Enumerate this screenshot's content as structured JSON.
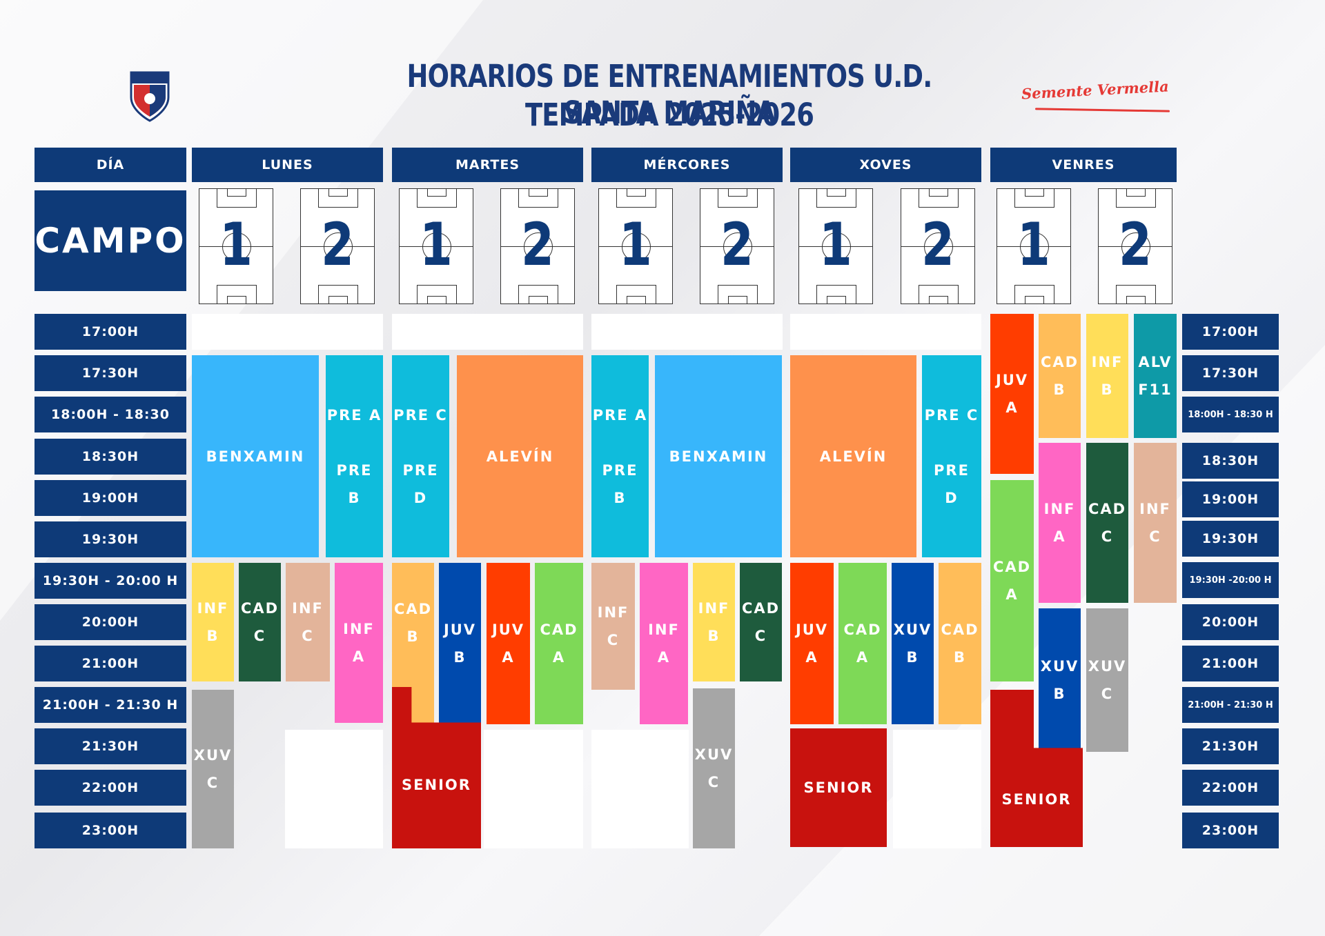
{
  "title": {
    "line1": "HORARIOS DE ENTRENAMIENTOS U.D. SANTA MARIÑA",
    "line2": "TEMPADA 2025-2026"
  },
  "logo": {
    "icon": "club-crest-icon",
    "colors": [
      "#d32f2f",
      "#1a3a7a"
    ]
  },
  "brand": "Semente Vermella",
  "header": {
    "day_label": "DÍA",
    "campo_label": "CAMPO",
    "days": [
      "LUNES",
      "MARTES",
      "MÉRCORES",
      "XOVES",
      "VENRES"
    ],
    "field_numbers": [
      "1",
      "2"
    ]
  },
  "times_left": [
    "17:00H",
    "17:30H",
    "18:00H - 18:30",
    "18:30H",
    "19:00H",
    "19:30H",
    "19:30H - 20:00 H",
    "20:00H",
    "21:00H",
    "21:00H - 21:30 H",
    "21:30H",
    "22:00H",
    "23:00H"
  ],
  "times_right": [
    "17:00H",
    "17:30H",
    "18:00H - 18:30 H",
    "18:30H",
    "19:00H",
    "19:30H",
    "19:30H -20:00 H",
    "20:00H",
    "21:00H",
    "21:00H - 21:30 H",
    "21:30H",
    "22:00H",
    "23:00H"
  ],
  "colors": {
    "navy": "#0e3a78",
    "benxamin": "#38b6fb",
    "prebenxamin": "#0fbcdc",
    "alevin": "#fe914c",
    "infantil_b": "#ffde59",
    "cadete_c": "#1e5b3d",
    "infantil_c": "#e3b49a",
    "infantil_a": "#ff66c4",
    "cadete_b": "#ffbd59",
    "xuvenil_c": "#a6a6a6",
    "xuvenil_b": "#004aad",
    "juvenil_a": "#ff3d00",
    "cadete_a": "#7ed957",
    "senior": "#c8120e",
    "alevin_f11": "#0e9aa7"
  },
  "blocks": {
    "lunes": [
      "BENXAMIN",
      "PRE A\n\nPRE\nB",
      "INF\nB",
      "CAD\nC",
      "INF\nC",
      "INF\nA",
      "XUV\nC"
    ],
    "martes": [
      "PRE C\n\nPRE\nD",
      "ALEVÍN",
      "CAD\nB",
      "JUV\nB",
      "JUV\nA",
      "CAD\nA",
      "SENIOR"
    ],
    "mercores": [
      "PRE A\n\nPRE\nB",
      "BENXAMIN",
      "INF\nC",
      "INF\nA",
      "INF\nB",
      "CAD\nC",
      "XUV\nC"
    ],
    "xoves": [
      "ALEVÍN",
      "PRE C\n\nPRE\nD",
      "JUV\nA",
      "CAD\nA",
      "XUV\nB",
      "CAD\nB",
      "SENIOR"
    ],
    "venres": [
      "JUV\nA",
      "CAD\nB",
      "INF\nB",
      "ALV\nF11",
      "CAD\nA",
      "INF\nA",
      "CAD\nC",
      "INF\nC",
      "XUV\nB",
      "XUV\nC",
      "SENIOR"
    ]
  }
}
